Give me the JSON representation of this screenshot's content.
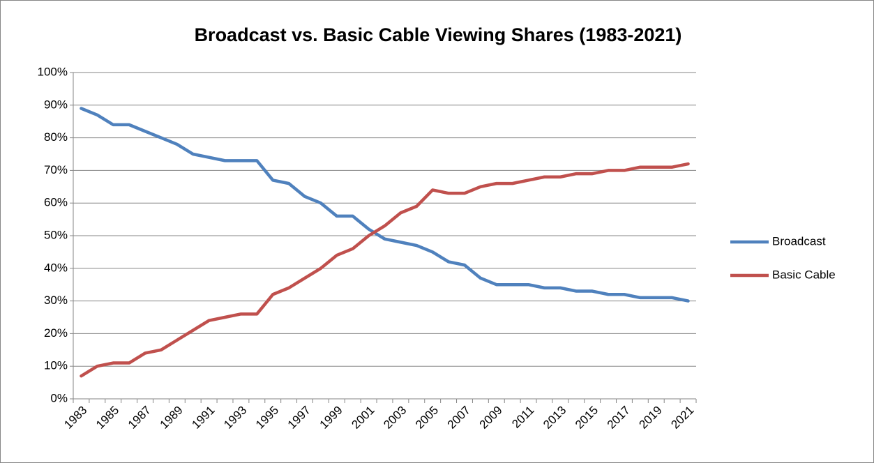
{
  "chart_data": {
    "type": "line",
    "title": "Broadcast vs. Basic Cable Viewing Shares (1983-2021)",
    "categories": [
      "1983",
      null,
      "1985",
      null,
      "1987",
      null,
      "1989",
      null,
      "1991",
      null,
      "1993",
      null,
      "1995",
      null,
      "1997",
      null,
      "1999",
      null,
      "2001",
      null,
      "2003",
      null,
      "2005",
      null,
      "2007",
      null,
      "2009",
      null,
      "2011",
      null,
      "2013",
      null,
      "2015",
      null,
      "2017",
      null,
      "2019",
      null,
      "2021"
    ],
    "series": [
      {
        "name": "Broadcast",
        "color": "#4f81bd",
        "values": [
          89,
          87,
          84,
          84,
          82,
          80,
          78,
          75,
          74,
          73,
          73,
          73,
          67,
          66,
          62,
          60,
          56,
          56,
          52,
          49,
          48,
          47,
          45,
          42,
          41,
          37,
          35,
          35,
          35,
          34,
          34,
          33,
          33,
          32,
          32,
          31,
          31,
          31,
          30
        ]
      },
      {
        "name": "Basic Cable",
        "color": "#c0504d",
        "values": [
          7,
          10,
          11,
          11,
          14,
          15,
          18,
          21,
          24,
          25,
          26,
          26,
          32,
          34,
          37,
          40,
          44,
          46,
          50,
          53,
          57,
          59,
          64,
          63,
          63,
          65,
          66,
          66,
          67,
          68,
          68,
          69,
          69,
          70,
          70,
          71,
          71,
          71,
          72
        ]
      }
    ],
    "ylim": [
      0,
      100
    ],
    "yticks": [
      {
        "value": 0,
        "label": "0%"
      },
      {
        "value": 10,
        "label": "10%"
      },
      {
        "value": 20,
        "label": "20%"
      },
      {
        "value": 30,
        "label": "30%"
      },
      {
        "value": 40,
        "label": "40%"
      },
      {
        "value": 50,
        "label": "50%"
      },
      {
        "value": 60,
        "label": "60%"
      },
      {
        "value": 70,
        "label": "70%"
      },
      {
        "value": 80,
        "label": "80%"
      },
      {
        "value": 90,
        "label": "90%"
      },
      {
        "value": 100,
        "label": "100%"
      }
    ],
    "grid": true,
    "legend": "right"
  }
}
